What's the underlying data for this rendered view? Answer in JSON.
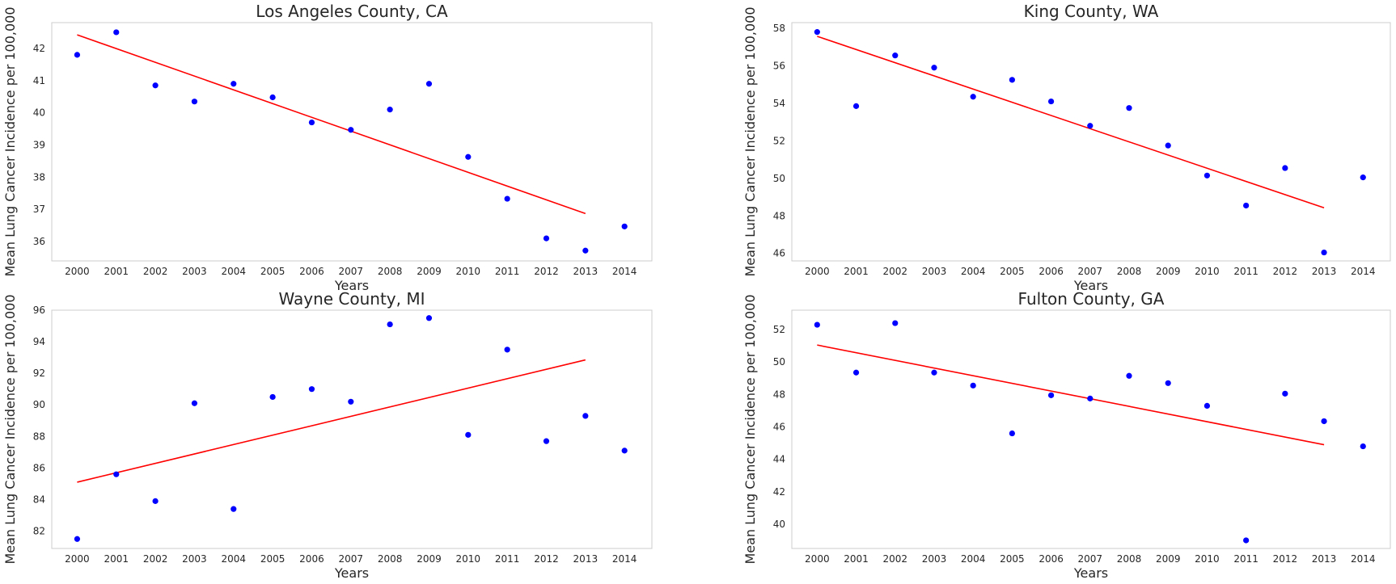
{
  "chart_data": [
    {
      "type": "scatter",
      "title": "Los Angeles County, CA",
      "xlabel": "Years",
      "ylabel": "Mean Lung Cancer Incidence per 100,000",
      "x": [
        2000,
        2001,
        2002,
        2003,
        2004,
        2005,
        2006,
        2007,
        2008,
        2009,
        2010,
        2011,
        2012,
        2013,
        2014
      ],
      "y": [
        41.8,
        42.5,
        40.85,
        40.35,
        40.9,
        40.48,
        39.7,
        39.47,
        40.1,
        40.9,
        38.63,
        37.33,
        36.1,
        35.72,
        36.47
      ],
      "trend": {
        "x": [
          2000,
          2013
        ],
        "y": [
          42.42,
          36.87
        ]
      },
      "xlim": [
        1999.35,
        2014.7
      ],
      "ylim": [
        35.4,
        42.8
      ],
      "yticks": [
        36,
        37,
        38,
        39,
        40,
        41,
        42
      ],
      "xticks": [
        2000,
        2001,
        2002,
        2003,
        2004,
        2005,
        2006,
        2007,
        2008,
        2009,
        2010,
        2011,
        2012,
        2013,
        2014
      ],
      "grid": false,
      "colors": {
        "points": "#0000ff",
        "trend": "#ff0000"
      }
    },
    {
      "type": "scatter",
      "title": "King County, WA",
      "xlabel": "Years",
      "ylabel": "Mean Lung Cancer Incidence per 100,000",
      "x": [
        2000,
        2001,
        2002,
        2003,
        2004,
        2005,
        2006,
        2007,
        2008,
        2009,
        2010,
        2011,
        2012,
        2013,
        2014
      ],
      "y": [
        57.8,
        53.85,
        56.55,
        55.9,
        54.35,
        55.25,
        54.1,
        52.8,
        53.75,
        51.75,
        50.15,
        48.55,
        50.55,
        46.05,
        50.05
      ],
      "trend": {
        "x": [
          2000,
          2013
        ],
        "y": [
          57.57,
          48.43
        ]
      },
      "xlim": [
        1999.35,
        2014.7
      ],
      "ylim": [
        45.6,
        58.3
      ],
      "yticks": [
        46,
        48,
        50,
        52,
        54,
        56,
        58
      ],
      "xticks": [
        2000,
        2001,
        2002,
        2003,
        2004,
        2005,
        2006,
        2007,
        2008,
        2009,
        2010,
        2011,
        2012,
        2013,
        2014
      ],
      "grid": false,
      "colors": {
        "points": "#0000ff",
        "trend": "#ff0000"
      }
    },
    {
      "type": "scatter",
      "title": "Wayne County, MI",
      "xlabel": "Years",
      "ylabel": "Mean Lung Cancer Incidence per 100,000",
      "x": [
        2000,
        2001,
        2002,
        2003,
        2004,
        2005,
        2006,
        2007,
        2008,
        2009,
        2010,
        2011,
        2012,
        2013,
        2014
      ],
      "y": [
        81.5,
        85.6,
        83.9,
        90.1,
        83.4,
        90.5,
        91.0,
        90.2,
        95.1,
        95.5,
        88.1,
        93.5,
        87.7,
        89.3,
        87.1
      ],
      "trend": {
        "x": [
          2000,
          2013
        ],
        "y": [
          85.1,
          92.85
        ]
      },
      "xlim": [
        1999.35,
        2014.7
      ],
      "ylim": [
        80.9,
        96.0
      ],
      "yticks": [
        82,
        84,
        86,
        88,
        90,
        92,
        94,
        96
      ],
      "xticks": [
        2000,
        2001,
        2002,
        2003,
        2004,
        2005,
        2006,
        2007,
        2008,
        2009,
        2010,
        2011,
        2012,
        2013,
        2014
      ],
      "grid": false,
      "colors": {
        "points": "#0000ff",
        "trend": "#ff0000"
      }
    },
    {
      "type": "scatter",
      "title": "Fulton County, GA",
      "xlabel": "Years",
      "ylabel": "Mean Lung Cancer Incidence per 100,000",
      "x": [
        2000,
        2001,
        2002,
        2003,
        2004,
        2005,
        2006,
        2007,
        2008,
        2009,
        2010,
        2011,
        2012,
        2013,
        2014
      ],
      "y": [
        52.3,
        49.35,
        52.4,
        49.35,
        48.55,
        45.6,
        47.95,
        47.75,
        49.15,
        48.7,
        47.3,
        39.0,
        48.05,
        46.35,
        44.8
      ],
      "trend": {
        "x": [
          2000,
          2013
        ],
        "y": [
          51.05,
          44.9
        ]
      },
      "xlim": [
        1999.35,
        2014.7
      ],
      "ylim": [
        38.5,
        53.2
      ],
      "yticks": [
        40,
        42,
        44,
        46,
        48,
        50,
        52
      ],
      "xticks": [
        2000,
        2001,
        2002,
        2003,
        2004,
        2005,
        2006,
        2007,
        2008,
        2009,
        2010,
        2011,
        2012,
        2013,
        2014
      ],
      "grid": false,
      "colors": {
        "points": "#0000ff",
        "trend": "#ff0000"
      }
    }
  ]
}
